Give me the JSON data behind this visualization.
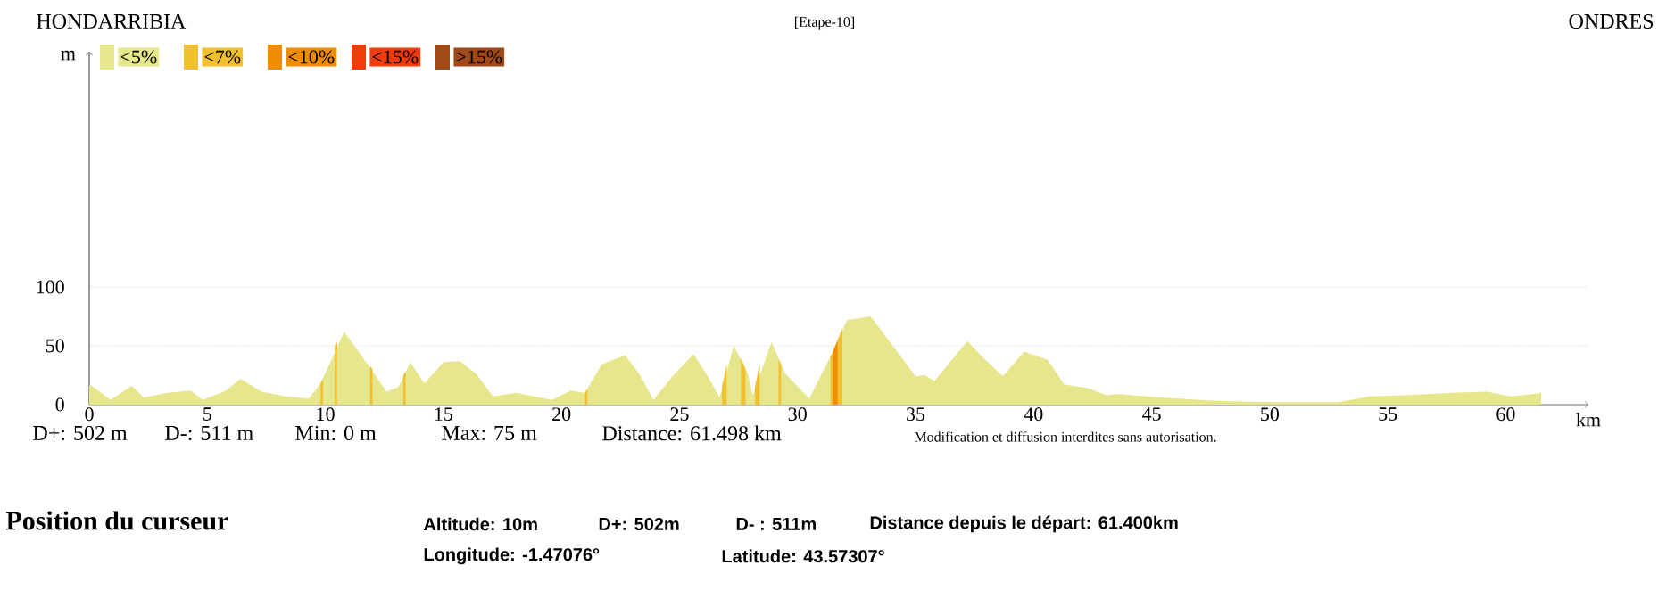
{
  "chart_data": {
    "type": "area",
    "title": "[Etape-10]",
    "xlabel": "km",
    "ylabel": "m",
    "xlim": [
      0,
      63.5
    ],
    "ylim": [
      0,
      300
    ],
    "xticks": [
      0,
      5,
      10,
      15,
      20,
      25,
      30,
      35,
      40,
      45,
      50,
      55,
      60
    ],
    "yticks": [
      0,
      50,
      100
    ],
    "grid": "y",
    "legend": "top left",
    "series": [
      {
        "name": "<5%",
        "color": "#e6e68c",
        "x": [
          0,
          0.1,
          0.9,
          1.8,
          2.3,
          3.3,
          4.3,
          4.8,
          5.8,
          6.4,
          7.3,
          8.3,
          9.3,
          9.8,
          10.8,
          11.8,
          12.6,
          13.1,
          13.6,
          14.2,
          15.0,
          15.7,
          16.4,
          17.1,
          18.1,
          19.6,
          20.4,
          21.0,
          21.7,
          22.7,
          23.3,
          23.9,
          24.7,
          25.6,
          26.2,
          26.7,
          27.3,
          27.9,
          28.1,
          28.9,
          29.5,
          30.5,
          31.4,
          32.1,
          33.1,
          34.0,
          35.0,
          35.4,
          35.8,
          37.2,
          37.8,
          38.7,
          39.6,
          40.6,
          41.3,
          42.3,
          43.1,
          43.6,
          45.4,
          47.9,
          50.4,
          52.9,
          54.2,
          55.7,
          57.7,
          59.2,
          60.2,
          61.2,
          61.5
        ],
        "values": [
          16,
          16,
          4,
          16,
          6,
          10,
          12,
          4,
          12,
          22,
          11,
          7,
          5,
          18,
          62,
          34,
          11,
          15,
          36,
          18,
          36,
          37,
          26,
          7,
          10,
          4,
          12,
          10,
          34,
          42,
          26,
          4,
          24,
          43,
          24,
          6,
          50,
          26,
          8,
          53,
          26,
          5,
          41,
          72,
          75,
          51,
          24,
          25,
          20,
          54,
          41,
          24,
          45,
          38,
          17,
          14,
          8,
          9,
          6,
          3,
          2,
          2,
          7,
          8,
          10,
          11,
          7,
          9,
          10
        ]
      },
      {
        "name": "<7%",
        "color": "#f0c030",
        "x": [
          9.8,
          9.9,
          null,
          10.4,
          10.5,
          null,
          11.9,
          12.0,
          null,
          13.3,
          13.4,
          null,
          21.0,
          21.1,
          null,
          26.8,
          27.0,
          null,
          27.6,
          27.8,
          null,
          28.2,
          28.4,
          null,
          29.2,
          29.3,
          null,
          31.4,
          31.5,
          null,
          31.7,
          31.9
        ],
        "values": [
          18,
          22,
          null,
          50,
          54,
          null,
          33,
          30,
          null,
          25,
          28,
          null,
          10,
          13,
          null,
          15,
          35,
          null,
          40,
          30,
          null,
          15,
          35,
          null,
          38,
          34,
          null,
          41,
          45,
          null,
          55,
          65
        ]
      },
      {
        "name": "<10%",
        "color": "#f08c00",
        "x": [
          31.5,
          31.7
        ],
        "values": [
          45,
          55
        ]
      },
      {
        "name": "<15%",
        "color": "#f03c0c"
      },
      {
        "name": ">15%",
        "color": "#a04a1a"
      }
    ],
    "annotations": [
      "HONDARRIBIA",
      "ONDRES",
      "D+: 502 m",
      "D-: 511 m",
      "Min: 0 m",
      "Max: 75 m",
      "Distance: 61.498 km",
      "Modification et diffusion interdites sans autorisation.",
      "Position du curseur",
      "Altitude: 10m",
      "D+: 502m",
      "D- : 511m",
      "Distance depuis le départ: 61.400km",
      "Longitude: -1.47076°",
      "Latitude: 43.57307°"
    ]
  }
}
